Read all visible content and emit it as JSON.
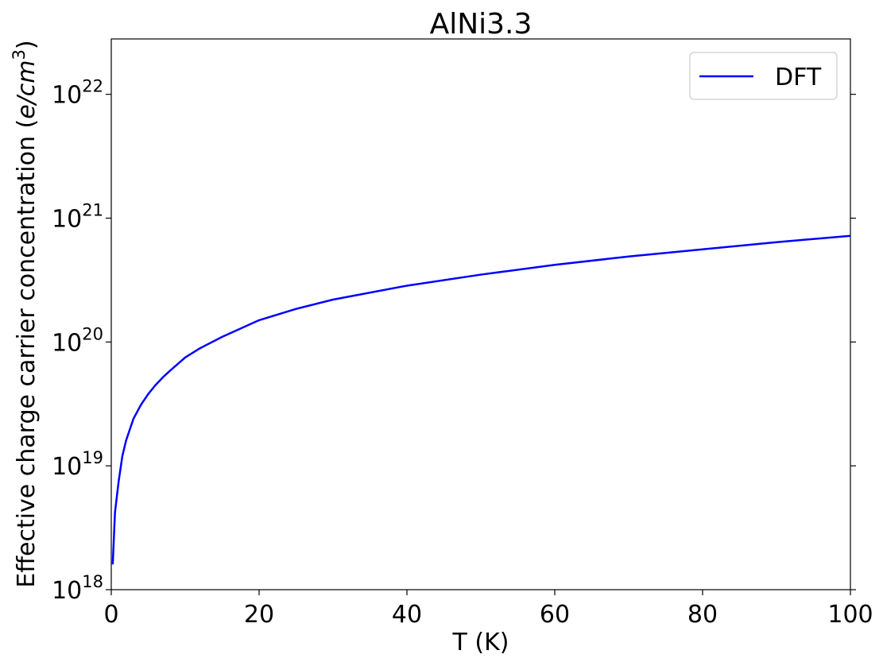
{
  "chart_data": {
    "type": "line",
    "title": "AlNi3.3",
    "xlabel": "T (K)",
    "ylabel": "Effective charge carrier concentration (",
    "ylabel_unit": "e/cm",
    "ylabel_unit_exp": "3",
    "ylabel_close": ")",
    "xlim": [
      0,
      100
    ],
    "ylim": [
      1e+18,
      2.8e+22
    ],
    "yscale": "log",
    "x_ticks": [
      "0",
      "20",
      "40",
      "60",
      "80",
      "100"
    ],
    "y_ticks": [
      {
        "base": "10",
        "exp": "18",
        "value": 1e+18
      },
      {
        "base": "10",
        "exp": "19",
        "value": 1e+19
      },
      {
        "base": "10",
        "exp": "20",
        "value": 1e+20
      },
      {
        "base": "10",
        "exp": "21",
        "value": 1e+21
      },
      {
        "base": "10",
        "exp": "22",
        "value": 1e+22
      }
    ],
    "grid": false,
    "legend": {
      "location": "top-right",
      "entries": [
        "DFT"
      ]
    },
    "series": [
      {
        "name": "DFT",
        "color": "#0000ff",
        "x": [
          0.2,
          0.5,
          1,
          1.5,
          2,
          3,
          4,
          5,
          6,
          7,
          8,
          10,
          12,
          15,
          20,
          25,
          30,
          40,
          50,
          60,
          70,
          80,
          90,
          100
        ],
        "y": [
          1.6e+18,
          4.2e+18,
          7.5e+18,
          1.2e+19,
          1.6e+19,
          2.4e+19,
          3.1e+19,
          3.8e+19,
          4.5e+19,
          5.2e+19,
          5.9e+19,
          7.5e+19,
          8.9e+19,
          1.1e+20,
          1.5e+20,
          1.85e+20,
          2.2e+20,
          2.85e+20,
          3.5e+20,
          4.2e+20,
          4.9e+20,
          5.6e+20,
          6.4e+20,
          7.2e+20
        ]
      }
    ]
  }
}
